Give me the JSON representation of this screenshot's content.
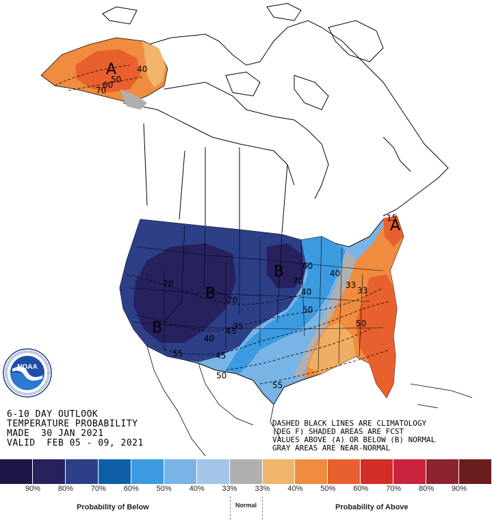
{
  "title": {
    "line1": "6-10 DAY OUTLOOK",
    "line2": "TEMPERATURE PROBABILITY",
    "line3": "MADE  30 JAN 2021",
    "line4": "VALID  FEB 05 - 09, 2021"
  },
  "legend_note": {
    "line1": "DASHED BLACK LINES ARE CLIMATOLOGY",
    "line2": "(DEG F) SHADED AREAS ARE FCST",
    "line3": "VALUES ABOVE (A) OR BELOW (B) NORMAL",
    "line4": "GRAY AREAS ARE NEAR-NORMAL"
  },
  "logo": {
    "text": "NOAA",
    "ring_text": "NATIONAL OCEANIC AND ATMOSPHERIC ADMINISTRATION · U.S. DEPARTMENT OF COMMERCE"
  },
  "scale": {
    "colors": [
      "#1c1545",
      "#27215e",
      "#2d3f86",
      "#0e5ea8",
      "#3b9ae0",
      "#78b4e6",
      "#a3c6e8",
      "#b0b0b0",
      "#f0b46b",
      "#ef8c3f",
      "#e8602d",
      "#d42d26",
      "#c9233e",
      "#8c2330",
      "#6b1d1e"
    ],
    "labels": [
      "90%",
      "80%",
      "70%",
      "60%",
      "50%",
      "40%",
      "33%",
      "33%",
      "40%",
      "50%",
      "60%",
      "70%",
      "80%",
      "90%"
    ],
    "below_label": "Probability of Below",
    "normal_label": "Normal",
    "above_label": "Probability of Above"
  },
  "map_labels": {
    "alaska_A": "A",
    "alaska_40": "40",
    "alaska_50": "50",
    "alaska_60": "60",
    "alaska_70": "70",
    "east_A": "A",
    "B_west": "B",
    "B_central": "B",
    "B_north": "B",
    "c70a": "70",
    "c70b": "70",
    "c70c": "70",
    "c60": "60",
    "c50a": "50",
    "c50b": "50",
    "c40a": "40",
    "c40b": "40",
    "c33a": "33",
    "c33b": "33",
    "c45a": "45",
    "c45b": "45",
    "c55a": "55",
    "c55b": "55",
    "c35": "35",
    "c50c": "50",
    "c40c": "40",
    "c15": "15"
  }
}
